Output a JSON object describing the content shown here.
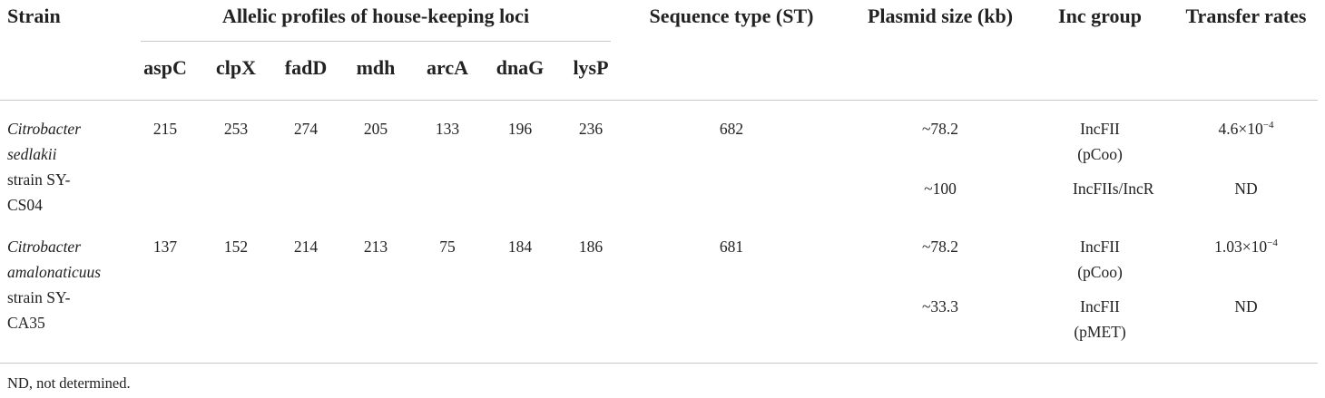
{
  "table": {
    "header": [
      "Strain",
      "Allelic profiles of house-keeping loci",
      "Sequence type (ST)",
      "Plasmid size (kb)",
      "Inc group",
      "Transfer rates"
    ],
    "loci": [
      "aspC",
      "clpX",
      "fadD",
      "mdh",
      "arcA",
      "dnaG",
      "lysP"
    ],
    "rows": [
      {
        "species": "Citrobacter sedlakii",
        "strain": "strain SY-CS04",
        "alleles": [
          215,
          253,
          274,
          205,
          133,
          196,
          236
        ],
        "st": 682,
        "plasmids": [
          {
            "size": "~78.2",
            "inc": "IncFII (pCoo)",
            "rate": {
              "base": "4.6×10",
              "exp": "−4"
            }
          },
          {
            "size": "~100",
            "inc": "IncFIIs/IncR",
            "rate": {
              "base": "ND"
            }
          }
        ]
      },
      {
        "species": "Citrobacter amalonaticuus",
        "strain": "strain SY-CA35",
        "alleles": [
          137,
          152,
          214,
          213,
          75,
          184,
          186
        ],
        "st": 681,
        "plasmids": [
          {
            "size": "~78.2",
            "inc": "IncFII (pCoo)",
            "rate": {
              "base": "1.03×10",
              "exp": "−4"
            }
          },
          {
            "size": "~33.3",
            "inc": "IncFII (pMET)",
            "rate": {
              "base": "ND"
            }
          }
        ]
      }
    ],
    "footnote": "ND, not determined."
  }
}
